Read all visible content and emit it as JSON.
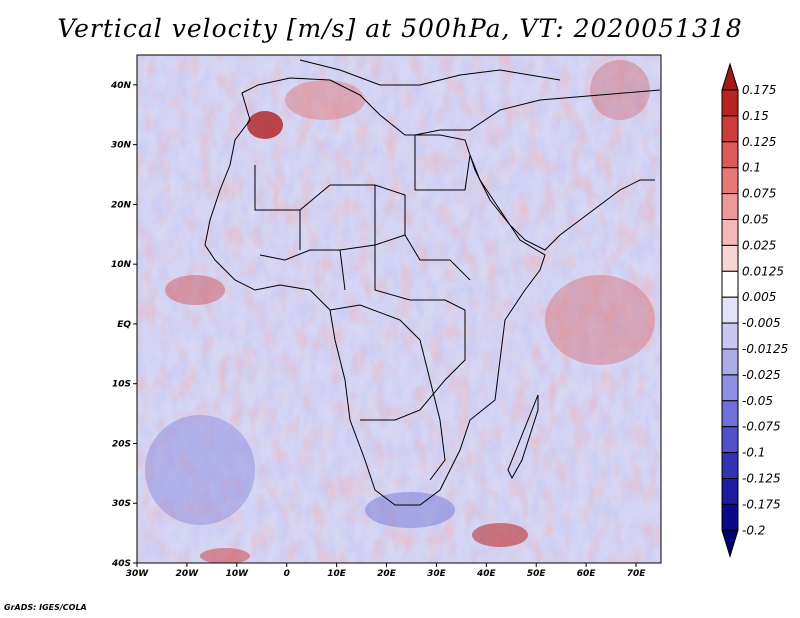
{
  "title": "Vertical velocity [m/s] at 500hPa, VT: 2020051318",
  "credit": "GrADS: IGES/COLA",
  "map": {
    "lon_range": [
      -30,
      75
    ],
    "lat_range": [
      -40,
      45
    ],
    "lat_ticks": [
      {
        "value": 40,
        "label": "40N"
      },
      {
        "value": 30,
        "label": "30N"
      },
      {
        "value": 20,
        "label": "20N"
      },
      {
        "value": 10,
        "label": "10N"
      },
      {
        "value": 0,
        "label": "EQ"
      },
      {
        "value": -10,
        "label": "10S"
      },
      {
        "value": -20,
        "label": "20S"
      },
      {
        "value": -30,
        "label": "30S"
      },
      {
        "value": -40,
        "label": "40S"
      }
    ],
    "lon_ticks": [
      {
        "value": -30,
        "label": "30W"
      },
      {
        "value": -20,
        "label": "20W"
      },
      {
        "value": -10,
        "label": "10W"
      },
      {
        "value": 0,
        "label": "0"
      },
      {
        "value": 10,
        "label": "10E"
      },
      {
        "value": 20,
        "label": "20E"
      },
      {
        "value": 30,
        "label": "30E"
      },
      {
        "value": 40,
        "label": "40E"
      },
      {
        "value": 50,
        "label": "50E"
      },
      {
        "value": 60,
        "label": "60E"
      },
      {
        "value": 70,
        "label": "70E"
      }
    ]
  },
  "colorbar": {
    "levels": [
      "0.175",
      "0.15",
      "0.125",
      "0.1",
      "0.075",
      "0.05",
      "0.025",
      "0.0125",
      "0.005",
      "-0.005",
      "-0.0125",
      "-0.025",
      "-0.05",
      "-0.075",
      "-0.1",
      "-0.125",
      "-0.175",
      "-0.2"
    ],
    "colors": [
      "#a01818",
      "#b82424",
      "#cc3c3c",
      "#dc5a5a",
      "#e67878",
      "#ee9898",
      "#f4b8b8",
      "#f8d4d4",
      "#ffffff",
      "#e2e2f8",
      "#c8c8f2",
      "#acacea",
      "#8e8ee2",
      "#7070d8",
      "#5050c8",
      "#3232b4",
      "#1c1ca0",
      "#0a0a88",
      "#000070"
    ]
  }
}
